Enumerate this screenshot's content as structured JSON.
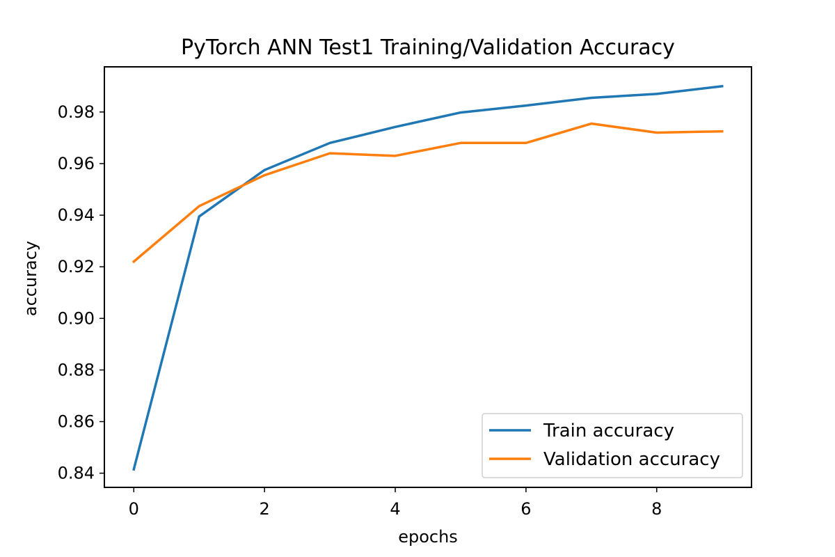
{
  "chart_data": {
    "type": "line",
    "title": "PyTorch ANN Test1 Training/Validation Accuracy",
    "xlabel": "epochs",
    "ylabel": "accuracy",
    "x": [
      0,
      1,
      2,
      3,
      4,
      5,
      6,
      7,
      8,
      9
    ],
    "xlim": [
      -0.45,
      9.45
    ],
    "ylim": [
      0.8345,
      0.9975
    ],
    "xticks": [
      0,
      2,
      4,
      6,
      8
    ],
    "xtick_labels": [
      "0",
      "2",
      "4",
      "6",
      "8"
    ],
    "yticks": [
      0.84,
      0.86,
      0.88,
      0.9,
      0.92,
      0.94,
      0.96,
      0.98
    ],
    "ytick_labels": [
      "0.84",
      "0.86",
      "0.88",
      "0.90",
      "0.92",
      "0.94",
      "0.96",
      "0.98"
    ],
    "grid": false,
    "legend_position": "lower right",
    "series": [
      {
        "name": "Train accuracy",
        "color": "#1f77b4",
        "values": [
          0.8415,
          0.9395,
          0.9575,
          0.968,
          0.9742,
          0.9798,
          0.9825,
          0.9855,
          0.987,
          0.99
        ]
      },
      {
        "name": "Validation accuracy",
        "color": "#ff7f0e",
        "values": [
          0.922,
          0.9435,
          0.9555,
          0.964,
          0.963,
          0.968,
          0.968,
          0.9755,
          0.972,
          0.9725
        ]
      }
    ]
  }
}
